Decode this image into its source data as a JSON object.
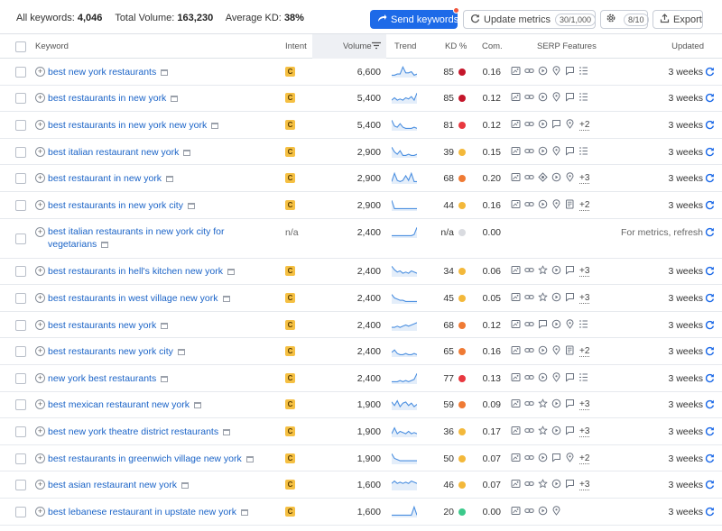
{
  "summary": {
    "all_keywords_label": "All keywords:",
    "all_keywords_value": "4,046",
    "total_volume_label": "Total Volume:",
    "total_volume_value": "163,230",
    "avg_kd_label": "Average KD:",
    "avg_kd_value": "38%"
  },
  "toolbar": {
    "send_label": "Send keywords",
    "update_label": "Update metrics",
    "update_count": "30/1,000",
    "gear_count": "8/10",
    "export_label": "Export"
  },
  "columns": {
    "keyword": "Keyword",
    "intent": "Intent",
    "volume": "Volume",
    "trend": "Trend",
    "kd": "KD %",
    "com": "Com.",
    "serp": "SERP Features",
    "updated": "Updated"
  },
  "colors": {
    "accent": "#1d6ae8",
    "link": "#1a63c7",
    "kd_very_hard": "#c4162a",
    "kd_hard": "#e8383f",
    "kd_difficult": "#ef7a34",
    "kd_possible": "#f3b83a",
    "kd_easy": "#3cc98b",
    "kd_na": "#d9dbe0",
    "trend": "#4b8fe0"
  },
  "rows": [
    {
      "keyword": "best new york restaurants",
      "intent": "C",
      "volume": "6,600",
      "kd": "85",
      "kd_color": "#c4162a",
      "com": "0.16",
      "serp": [
        "image-pack-icon",
        "link-icon",
        "video-icon",
        "local-pack-icon",
        "reviews-icon",
        "list-icon"
      ],
      "more": "",
      "updated": "3 weeks",
      "trend": [
        2,
        2,
        3,
        3,
        9,
        4,
        4,
        5,
        2,
        3
      ]
    },
    {
      "keyword": "best restaurants in new york",
      "intent": "C",
      "volume": "5,400",
      "kd": "85",
      "kd_color": "#c4162a",
      "com": "0.12",
      "serp": [
        "image-pack-icon",
        "link-icon",
        "video-icon",
        "local-pack-icon",
        "reviews-icon",
        "list-icon"
      ],
      "more": "",
      "updated": "3 weeks",
      "trend": [
        3,
        5,
        3,
        4,
        3,
        5,
        4,
        6,
        3,
        9
      ]
    },
    {
      "keyword": "best restaurants in new york new york",
      "intent": "C",
      "volume": "5,400",
      "kd": "81",
      "kd_color": "#e8383f",
      "com": "0.12",
      "serp": [
        "image-pack-icon",
        "link-icon",
        "video-icon",
        "reviews-icon",
        "local-pack-icon"
      ],
      "more": "+2",
      "updated": "3 weeks",
      "trend": [
        9,
        4,
        3,
        6,
        3,
        2,
        2,
        2,
        3,
        2
      ]
    },
    {
      "keyword": "best italian restaurant new york",
      "intent": "C",
      "volume": "2,900",
      "kd": "39",
      "kd_color": "#f3b83a",
      "com": "0.15",
      "serp": [
        "image-pack-icon",
        "link-icon",
        "video-icon",
        "local-pack-icon",
        "reviews-icon",
        "list-icon"
      ],
      "more": "",
      "updated": "3 weeks",
      "trend": [
        9,
        5,
        3,
        6,
        2,
        2,
        3,
        2,
        2,
        3
      ]
    },
    {
      "keyword": "best restaurant in new york",
      "intent": "C",
      "volume": "2,900",
      "kd": "68",
      "kd_color": "#ef7a34",
      "com": "0.20",
      "serp": [
        "image-pack-icon",
        "link-icon",
        "sitelinks-icon",
        "video-icon",
        "local-pack-icon"
      ],
      "more": "+3",
      "updated": "3 weeks",
      "trend": [
        2,
        9,
        3,
        2,
        3,
        7,
        3,
        9,
        2,
        2
      ]
    },
    {
      "keyword": "best restaurants in new york city",
      "intent": "C",
      "volume": "2,900",
      "kd": "44",
      "kd_color": "#f3b83a",
      "com": "0.16",
      "serp": [
        "image-pack-icon",
        "link-icon",
        "video-icon",
        "local-pack-icon",
        "news-icon"
      ],
      "more": "+2",
      "updated": "3 weeks",
      "trend": [
        9,
        2,
        2,
        2,
        2,
        2,
        2,
        2,
        2,
        2
      ]
    },
    {
      "keyword": "best italian restaurants in new york city for vegetarians",
      "intent": "n/a",
      "volume": "2,400",
      "kd": "n/a",
      "kd_color": "#d9dbe0",
      "com": "0.00",
      "serp": [],
      "more": "",
      "updated": "For metrics, refresh",
      "trend": [
        2,
        2,
        2,
        2,
        2,
        2,
        2,
        2,
        3,
        9
      ]
    },
    {
      "keyword": "best restaurants in hell's kitchen new york",
      "intent": "C",
      "volume": "2,400",
      "kd": "34",
      "kd_color": "#f3b83a",
      "com": "0.06",
      "serp": [
        "image-pack-icon",
        "link-icon",
        "star-icon",
        "video-icon",
        "reviews-icon"
      ],
      "more": "+3",
      "updated": "3 weeks",
      "trend": [
        9,
        6,
        4,
        5,
        3,
        4,
        3,
        5,
        4,
        3
      ]
    },
    {
      "keyword": "best restaurants in west village new york",
      "intent": "C",
      "volume": "2,400",
      "kd": "45",
      "kd_color": "#f3b83a",
      "com": "0.05",
      "serp": [
        "image-pack-icon",
        "link-icon",
        "star-icon",
        "video-icon",
        "reviews-icon"
      ],
      "more": "+3",
      "updated": "3 weeks",
      "trend": [
        8,
        5,
        4,
        3,
        3,
        2,
        2,
        2,
        2,
        2
      ]
    },
    {
      "keyword": "best restaurants new york",
      "intent": "C",
      "volume": "2,400",
      "kd": "68",
      "kd_color": "#ef7a34",
      "com": "0.12",
      "serp": [
        "image-pack-icon",
        "link-icon",
        "reviews-icon",
        "video-icon",
        "local-pack-icon",
        "list-icon"
      ],
      "more": "",
      "updated": "3 weeks",
      "trend": [
        3,
        3,
        4,
        3,
        4,
        5,
        4,
        5,
        6,
        7
      ]
    },
    {
      "keyword": "best restaurants new york city",
      "intent": "C",
      "volume": "2,400",
      "kd": "65",
      "kd_color": "#ef7a34",
      "com": "0.16",
      "serp": [
        "image-pack-icon",
        "link-icon",
        "video-icon",
        "local-pack-icon",
        "news-icon"
      ],
      "more": "+2",
      "updated": "3 weeks",
      "trend": [
        4,
        6,
        3,
        2,
        2,
        3,
        2,
        2,
        3,
        2
      ]
    },
    {
      "keyword": "new york best restaurants",
      "intent": "C",
      "volume": "2,400",
      "kd": "77",
      "kd_color": "#e8383f",
      "com": "0.13",
      "serp": [
        "image-pack-icon",
        "link-icon",
        "video-icon",
        "local-pack-icon",
        "reviews-icon",
        "list-icon"
      ],
      "more": "",
      "updated": "3 weeks",
      "trend": [
        2,
        2,
        2,
        3,
        2,
        3,
        2,
        3,
        4,
        9
      ]
    },
    {
      "keyword": "best mexican restaurant new york",
      "intent": "C",
      "volume": "1,900",
      "kd": "59",
      "kd_color": "#ef7a34",
      "com": "0.09",
      "serp": [
        "image-pack-icon",
        "link-icon",
        "star-icon",
        "video-icon",
        "reviews-icon"
      ],
      "more": "+3",
      "updated": "3 weeks",
      "trend": [
        7,
        4,
        8,
        3,
        6,
        7,
        4,
        6,
        3,
        5
      ]
    },
    {
      "keyword": "best new york theatre district restaurants",
      "intent": "C",
      "volume": "1,900",
      "kd": "36",
      "kd_color": "#f3b83a",
      "com": "0.17",
      "serp": [
        "image-pack-icon",
        "link-icon",
        "star-icon",
        "video-icon",
        "reviews-icon"
      ],
      "more": "+3",
      "updated": "3 weeks",
      "trend": [
        3,
        8,
        3,
        5,
        4,
        3,
        5,
        3,
        4,
        3
      ]
    },
    {
      "keyword": "best restaurants in greenwich village new york",
      "intent": "C",
      "volume": "1,900",
      "kd": "50",
      "kd_color": "#f3b83a",
      "com": "0.07",
      "serp": [
        "image-pack-icon",
        "link-icon",
        "video-icon",
        "reviews-icon",
        "local-pack-icon"
      ],
      "more": "+2",
      "updated": "3 weeks",
      "trend": [
        9,
        5,
        4,
        3,
        3,
        3,
        3,
        3,
        3,
        3
      ]
    },
    {
      "keyword": "best asian restaurant new york",
      "intent": "C",
      "volume": "1,600",
      "kd": "46",
      "kd_color": "#f3b83a",
      "com": "0.07",
      "serp": [
        "image-pack-icon",
        "link-icon",
        "star-icon",
        "video-icon",
        "reviews-icon"
      ],
      "more": "+3",
      "updated": "3 weeks",
      "trend": [
        6,
        8,
        6,
        7,
        6,
        7,
        6,
        8,
        7,
        6
      ]
    },
    {
      "keyword": "best lebanese restaurant in upstate new york",
      "intent": "C",
      "volume": "1,600",
      "kd": "20",
      "kd_color": "#3cc98b",
      "com": "0.00",
      "serp": [
        "image-pack-icon",
        "link-icon",
        "video-icon",
        "local-pack-icon"
      ],
      "more": "",
      "updated": "3 weeks",
      "trend": [
        2,
        2,
        2,
        2,
        2,
        2,
        2,
        2,
        9,
        2
      ]
    }
  ]
}
